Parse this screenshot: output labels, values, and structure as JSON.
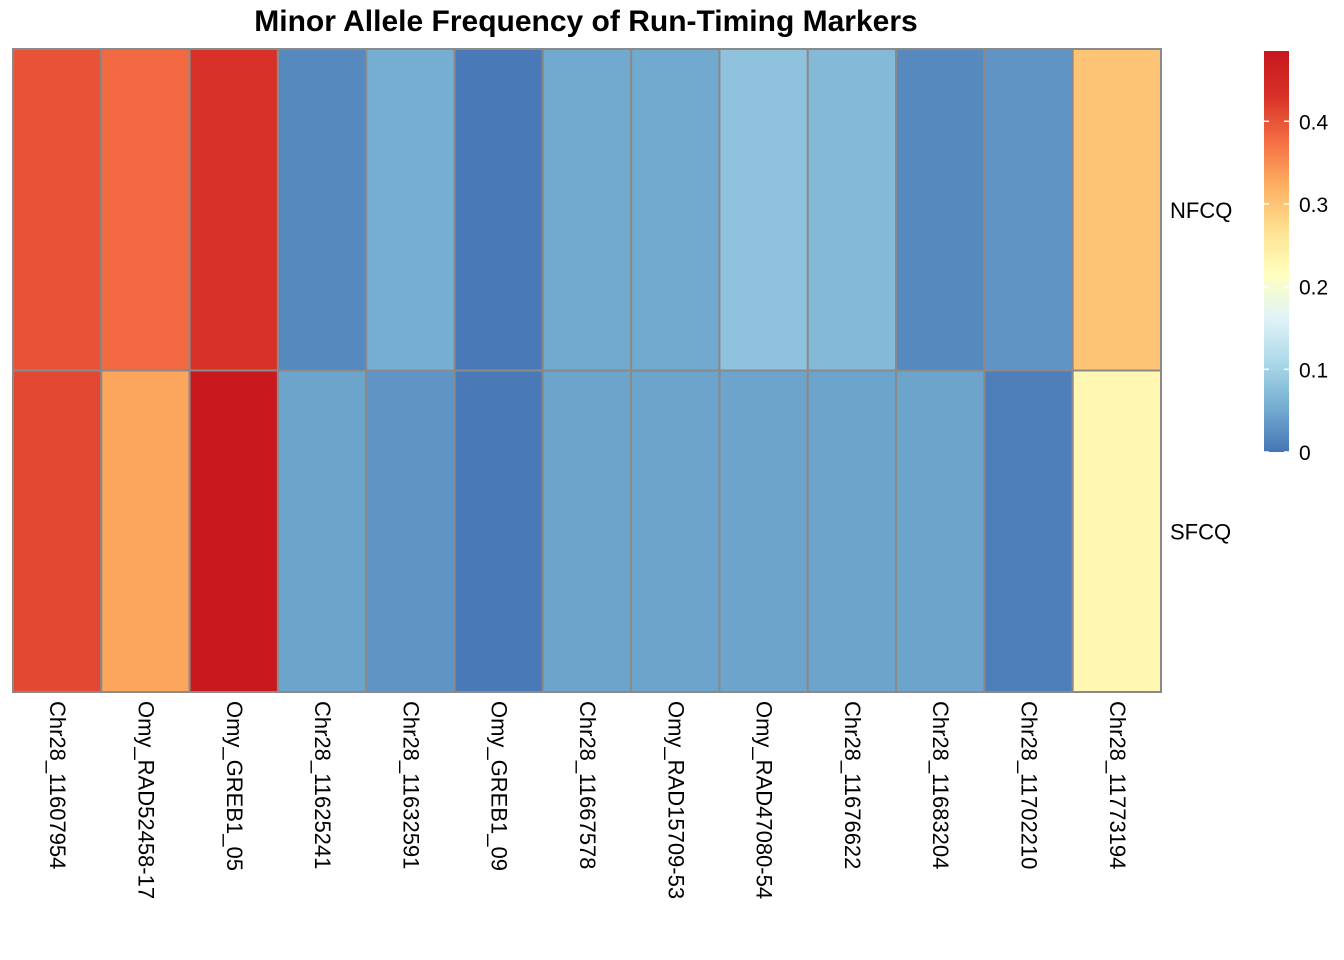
{
  "chart_data": {
    "type": "heatmap",
    "title": "Minor Allele Frequency of Run-Timing Markers",
    "columns": [
      "Chr28_11607954",
      "Omy_RAD52458-17",
      "Omy_GREB1_05",
      "Chr28_11625241",
      "Chr28_11632591",
      "Omy_GREB1_09",
      "Chr28_11667578",
      "Omy_RAD15709-53",
      "Omy_RAD47080-54",
      "Chr28_11676622",
      "Chr28_11683204",
      "Chr28_11702210",
      "Chr28_11773194"
    ],
    "rows": [
      "NFCQ",
      "SFCQ"
    ],
    "values": [
      [
        0.4,
        0.38,
        0.43,
        0.02,
        0.055,
        0.005,
        0.05,
        0.05,
        0.08,
        0.07,
        0.02,
        0.03,
        0.3
      ],
      [
        0.41,
        0.33,
        0.48,
        0.045,
        0.03,
        0.005,
        0.045,
        0.045,
        0.045,
        0.045,
        0.045,
        0.01,
        0.23
      ]
    ],
    "legend": {
      "position": "right",
      "min": 0,
      "max": 0.485,
      "ticks": [
        "0",
        "0.1",
        "0.2",
        "0.3",
        "0.4"
      ],
      "tick_values": [
        0,
        0.1,
        0.2,
        0.3,
        0.4
      ],
      "palette": [
        "#4575b4",
        "#74add1",
        "#abd9e9",
        "#e0f3f8",
        "#ffffbf",
        "#fee090",
        "#fdae61",
        "#f46d43",
        "#d73027",
        "#c6171e"
      ]
    },
    "grid_line_color": "#8a8a8a"
  }
}
